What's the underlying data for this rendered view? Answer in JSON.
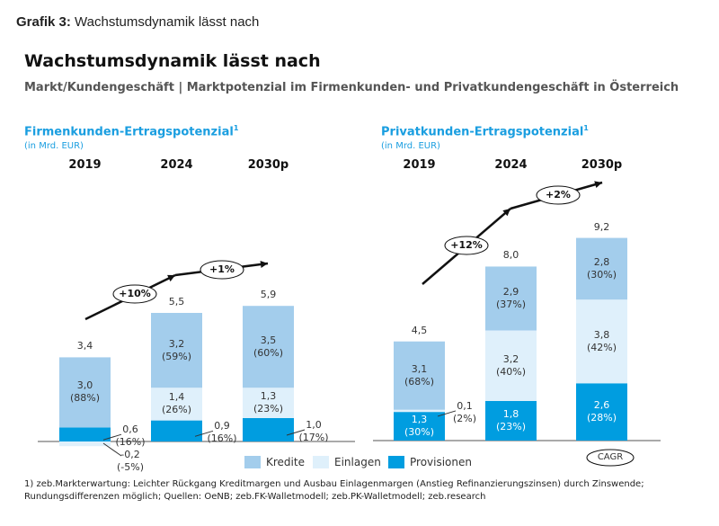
{
  "header": {
    "grafik_label": "Grafik 3:",
    "grafik_title": "Wachstumsdynamik lässt nach"
  },
  "title": "Wachstumsdynamik lässt nach",
  "subtitle": "Markt/Kundengeschäft | Marktpotenzial im Firmenkunden- und Privatkundengeschäft in Österreich",
  "colors": {
    "Kredite": "#a3cdec",
    "Einlagen": "#dff0fb",
    "Provisionen": "#009de0",
    "title_blue": "#1a9ee0"
  },
  "chart_data": [
    {
      "type": "bar",
      "stacked": true,
      "title": "Firmenkunden-Ertragspotenzial",
      "title_sup": "1",
      "unit": "(in Mrd. EUR)",
      "categories": [
        "2019",
        "2024",
        "2030p"
      ],
      "totals": [
        "3,4",
        "5,5",
        "5,9"
      ],
      "series": [
        {
          "name": "Provisionen",
          "values": [
            0.6,
            0.9,
            1.0
          ],
          "labels": [
            "0,6",
            "0,9",
            "1,0"
          ],
          "pct": [
            "(16%)",
            "(16%)",
            "(17%)"
          ]
        },
        {
          "name": "Einlagen",
          "values": [
            -0.2,
            1.4,
            1.3
          ],
          "labels": [
            "-0,2",
            "1,4",
            "1,3"
          ],
          "pct": [
            "(-5%)",
            "(26%)",
            "(23%)"
          ]
        },
        {
          "name": "Kredite",
          "values": [
            3.0,
            3.2,
            3.5
          ],
          "labels": [
            "3,0",
            "3,2",
            "3,5"
          ],
          "pct": [
            "(88%)",
            "(59%)",
            "(60%)"
          ]
        }
      ],
      "cagr": [
        "+10%",
        "+1%"
      ]
    },
    {
      "type": "bar",
      "stacked": true,
      "title": "Privatkunden-Ertragspotenzial",
      "title_sup": "1",
      "unit": "(in Mrd. EUR)",
      "categories": [
        "2019",
        "2024",
        "2030p"
      ],
      "totals": [
        "4,5",
        "8,0",
        "9,2"
      ],
      "series": [
        {
          "name": "Provisionen",
          "values": [
            1.3,
            1.8,
            2.6
          ],
          "labels": [
            "1,3",
            "1,8",
            "2,6"
          ],
          "pct": [
            "(30%)",
            "(23%)",
            "(28%)"
          ]
        },
        {
          "name": "Einlagen",
          "values": [
            0.1,
            3.2,
            3.8
          ],
          "labels": [
            "0,1",
            "3,2",
            "3,8"
          ],
          "pct": [
            "(2%)",
            "(40%)",
            "(42%)"
          ]
        },
        {
          "name": "Kredite",
          "values": [
            3.1,
            2.9,
            2.8
          ],
          "labels": [
            "3,1",
            "2,9",
            "2,8"
          ],
          "pct": [
            "(68%)",
            "(37%)",
            "(30%)"
          ]
        }
      ],
      "cagr": [
        "+12%",
        "+2%"
      ]
    }
  ],
  "legend": {
    "items": [
      "Kredite",
      "Einlagen",
      "Provisionen"
    ],
    "cagr": "CAGR"
  },
  "footnote": "1) zeb.Markterwartung: Leichter Rückgang Kreditmargen und Ausbau Einlagenmargen (Anstieg Refinanzierungszinsen) durch Zinswende; Rundungsdifferenzen möglich; Quellen: OeNB; zeb.FK-Walletmodell; zeb.PK-Walletmodell; zeb.research"
}
